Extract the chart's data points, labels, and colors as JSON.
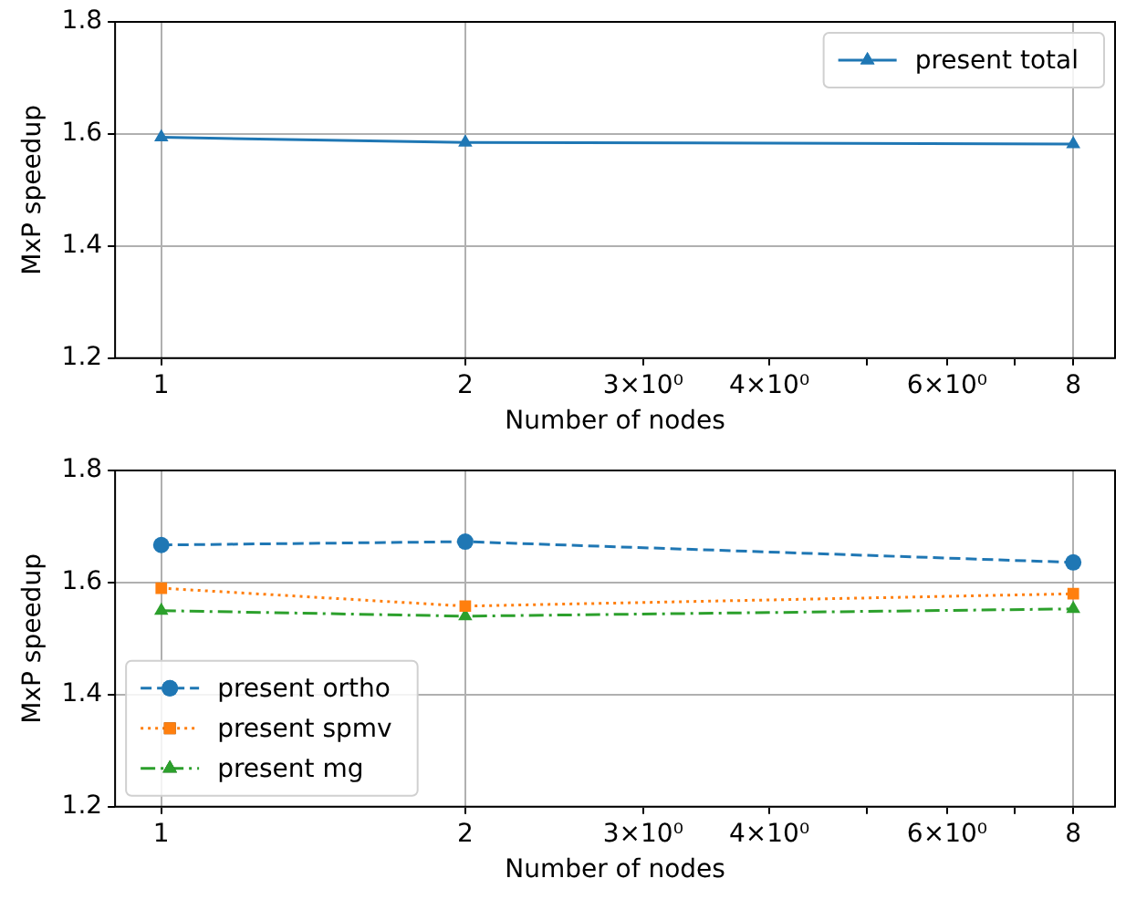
{
  "chart_data": [
    {
      "type": "line",
      "xlabel": "Number of nodes",
      "ylabel": "MxP speedup",
      "x": [
        1,
        2,
        8
      ],
      "series": [
        {
          "name": "present total",
          "color": "#1f77b4",
          "values": [
            1.594,
            1.585,
            1.582
          ],
          "marker": "triangle",
          "line_style": "solid"
        }
      ],
      "log": "x",
      "xlim": [
        0.9,
        8.8
      ],
      "xticks": [
        1,
        2,
        {
          "value": 3,
          "label": "3×10⁰"
        },
        {
          "value": 4,
          "label": "4×10⁰"
        },
        {
          "value": 5,
          "label": null
        },
        {
          "value": 6,
          "label": "6×10⁰"
        },
        {
          "value": 7,
          "label": null
        },
        8
      ],
      "ylim": [
        1.2,
        1.8
      ],
      "yticks": [
        1.2,
        1.4,
        1.6,
        1.8
      ],
      "grid": true,
      "legend": "top right"
    },
    {
      "type": "line",
      "xlabel": "Number of nodes",
      "ylabel": "MxP speedup",
      "x": [
        1,
        2,
        8
      ],
      "series": [
        {
          "name": "present ortho",
          "color": "#1f77b4",
          "values": [
            1.667,
            1.673,
            1.636
          ],
          "marker": "circle",
          "line_style": "dashed"
        },
        {
          "name": "present spmv",
          "color": "#ff7f0e",
          "values": [
            1.59,
            1.558,
            1.58
          ],
          "marker": "square",
          "line_style": "dotted"
        },
        {
          "name": "present mg",
          "color": "#2ca02c",
          "values": [
            1.55,
            1.54,
            1.553
          ],
          "marker": "triangle",
          "line_style": "dashdot"
        }
      ],
      "log": "x",
      "xlim": [
        0.9,
        8.8
      ],
      "xticks": [
        1,
        2,
        {
          "value": 3,
          "label": "3×10⁰"
        },
        {
          "value": 4,
          "label": "4×10⁰"
        },
        {
          "value": 5,
          "label": null
        },
        {
          "value": 6,
          "label": "6×10⁰"
        },
        {
          "value": 7,
          "label": null
        },
        8
      ],
      "ylim": [
        1.2,
        1.8
      ],
      "yticks": [
        1.2,
        1.4,
        1.6,
        1.8
      ],
      "grid": true,
      "legend": "bottom left"
    }
  ]
}
